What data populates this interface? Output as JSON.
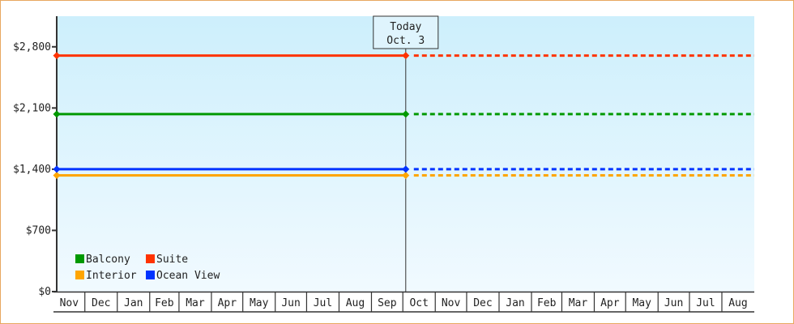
{
  "chart_data": {
    "type": "line",
    "title": "",
    "xlabel": "",
    "ylabel": "",
    "ylim": [
      0,
      3150
    ],
    "y_ticks": [
      0,
      700,
      1400,
      2100,
      2800
    ],
    "y_tick_labels": [
      "$0",
      "$700",
      "$1,400",
      "$2,100",
      "$2,800"
    ],
    "x_tick_labels": [
      "Nov",
      "Dec",
      "Jan",
      "Feb",
      "Mar",
      "Apr",
      "May",
      "Jun",
      "Jul",
      "Aug",
      "Sep",
      "Oct",
      "Nov",
      "Dec",
      "Jan",
      "Feb",
      "Mar",
      "Apr",
      "May",
      "Jun",
      "Jul",
      "Aug"
    ],
    "grid": false,
    "legend_position": "bottom-left",
    "today_marker": {
      "line1": "Today",
      "line2": "Oct. 3"
    },
    "series": [
      {
        "name": "Balcony",
        "color": "#009900",
        "value": 2030,
        "history": "solid",
        "projection": "dotted"
      },
      {
        "name": "Suite",
        "color": "#ff3300",
        "value": 2700,
        "history": "solid",
        "projection": "dotted"
      },
      {
        "name": "Interior",
        "color": "#ffa500",
        "value": 1330,
        "history": "solid",
        "projection": "dotted"
      },
      {
        "name": "Ocean View",
        "color": "#0033ff",
        "value": 1400,
        "history": "solid",
        "projection": "dotted"
      }
    ]
  },
  "colors": {
    "frame": "#e8a860",
    "plot_top": "#cdeffc",
    "plot_bottom": "#f1faff",
    "axis": "#333333"
  }
}
